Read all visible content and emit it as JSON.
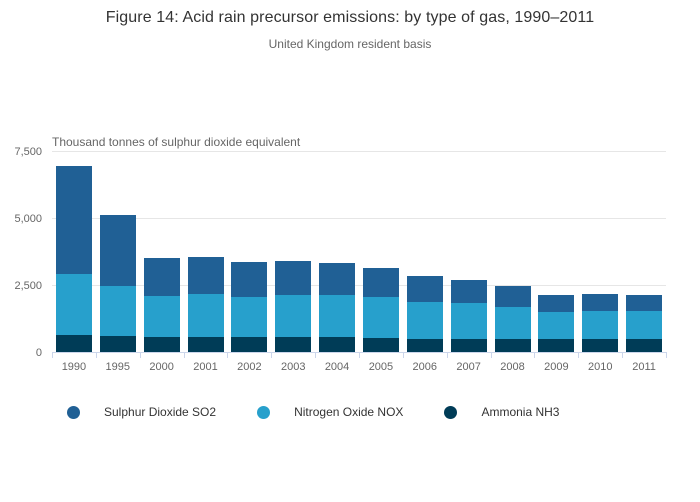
{
  "chart_data": {
    "type": "bar",
    "stacked": true,
    "title": "Figure 14: Acid rain precursor emissions: by type of gas, 1990–2011",
    "subtitle": "United Kingdom resident basis",
    "y_axis_title": "Thousand tonnes of sulphur dioxide equivalent",
    "ylim": [
      0,
      7500
    ],
    "yticks": [
      {
        "value": 0,
        "label": "0"
      },
      {
        "value": 2500,
        "label": "2,500"
      },
      {
        "value": 5000,
        "label": "5,000"
      },
      {
        "value": 7500,
        "label": "7,500"
      }
    ],
    "grid": "horizontal",
    "legend_position": "bottom-left",
    "categories": [
      "1990",
      "1995",
      "2000",
      "2001",
      "2002",
      "2003",
      "2004",
      "2005",
      "2006",
      "2007",
      "2008",
      "2009",
      "2010",
      "2011"
    ],
    "series": [
      {
        "name": "Sulphur Dioxide SO2",
        "color": "#206095",
        "values": [
          4025,
          2625,
          1425,
          1400,
          1300,
          1275,
          1200,
          1100,
          950,
          850,
          775,
          640,
          630,
          610
        ]
      },
      {
        "name": "Nitrogen Oxide NOX",
        "color": "#27a0cc",
        "values": [
          2275,
          1875,
          1525,
          1600,
          1500,
          1575,
          1575,
          1525,
          1375,
          1340,
          1220,
          1010,
          1050,
          1030
        ]
      },
      {
        "name": "Ammonia NH3",
        "color": "#003c57",
        "values": [
          625,
          600,
          575,
          550,
          550,
          550,
          550,
          525,
          500,
          500,
          475,
          480,
          480,
          490
        ]
      }
    ],
    "stack_order_bottom_to_top": [
      "Ammonia NH3",
      "Nitrogen Oxide NOX",
      "Sulphur Dioxide SO2"
    ],
    "colors": {
      "gridline": "#e6e6e6",
      "axis_line": "#ccd6eb",
      "title_text": "#333333",
      "label_text": "#666666"
    }
  }
}
